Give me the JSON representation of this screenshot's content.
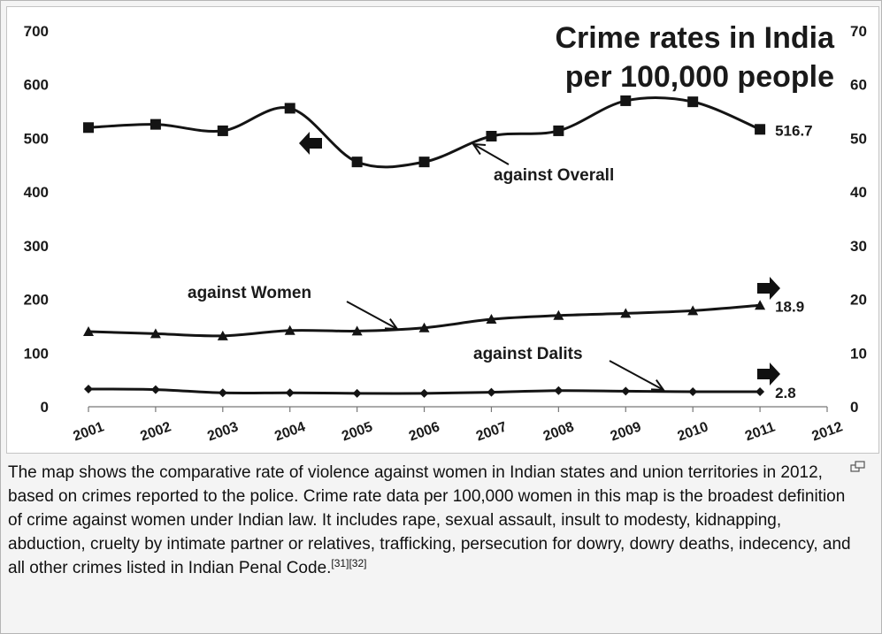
{
  "chart_data": {
    "type": "line",
    "title_lines": [
      "Crime rates in India",
      "per 100,000 people"
    ],
    "x": [
      "2001",
      "2002",
      "2003",
      "2004",
      "2005",
      "2006",
      "2007",
      "2008",
      "2009",
      "2010",
      "2011",
      "2012"
    ],
    "xlim": [
      2001,
      2012
    ],
    "left_axis": {
      "ylim": [
        0,
        700
      ],
      "ticks": [
        "0",
        "100",
        "200",
        "300",
        "400",
        "500",
        "600",
        "700"
      ]
    },
    "right_axis": {
      "ylim": [
        0,
        70
      ],
      "ticks": [
        "0",
        "10",
        "20",
        "30",
        "40",
        "50",
        "60",
        "70"
      ]
    },
    "grid": false,
    "series": [
      {
        "name": "against Overall",
        "axis": "left",
        "marker": "square",
        "x": [
          2001,
          2002,
          2003,
          2004,
          2005,
          2006,
          2007,
          2008,
          2009,
          2010,
          2011
        ],
        "values": [
          520,
          526,
          514,
          556,
          456,
          456,
          504,
          514,
          570,
          568,
          516.7
        ],
        "end_label": "516.7",
        "axis_arrow": "left"
      },
      {
        "name": "against Women",
        "axis": "right",
        "marker": "triangle",
        "x": [
          2001,
          2002,
          2003,
          2004,
          2005,
          2006,
          2007,
          2008,
          2009,
          2010,
          2011
        ],
        "values": [
          14.0,
          13.6,
          13.2,
          14.2,
          14.1,
          14.7,
          16.3,
          17.0,
          17.4,
          17.9,
          18.9
        ],
        "end_label": "18.9",
        "axis_arrow": "right"
      },
      {
        "name": "against Dalits",
        "axis": "right",
        "marker": "diamond",
        "x": [
          2001,
          2002,
          2003,
          2004,
          2005,
          2006,
          2007,
          2008,
          2009,
          2010,
          2011
        ],
        "values": [
          3.3,
          3.2,
          2.6,
          2.6,
          2.5,
          2.5,
          2.7,
          3.0,
          2.9,
          2.8,
          2.8
        ],
        "end_label": "2.8",
        "axis_arrow": "right"
      }
    ]
  },
  "caption": {
    "text": "The map shows the comparative rate of violence against women in Indian states and union territories in 2012, based on crimes reported to the police. Crime rate data per 100,000 women in this map is the broadest definition of crime against women under Indian law. It includes rape, sexual assault, insult to modesty, kidnapping, abduction, cruelty by intimate partner or relatives, trafficking, persecution for dowry, dowry deaths, indecency, and all other crimes listed in Indian Penal Code.",
    "ref1": "[31]",
    "ref2": "[32]"
  },
  "icons": {
    "enlarge": "enlarge-icon"
  }
}
